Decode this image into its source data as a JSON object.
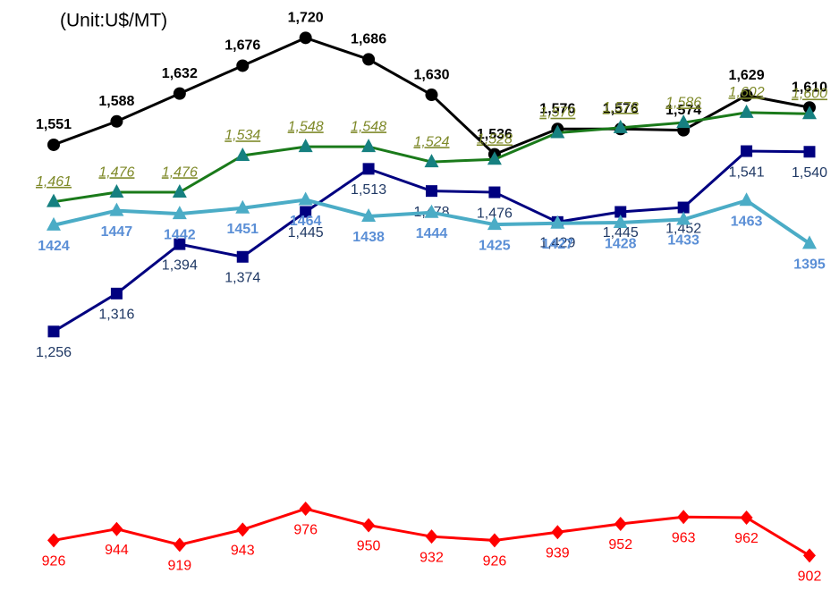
{
  "chart_data": {
    "type": "line",
    "title": "(Unit:U$/MT)",
    "categories": [
      null,
      null,
      null,
      null,
      null,
      null,
      null,
      null,
      null,
      null,
      null,
      null,
      null
    ],
    "ylim": [
      880,
      1760
    ],
    "series": [
      {
        "name": null,
        "color": "#000000",
        "label_color": "#000000",
        "marker": "circle",
        "label_style": "bold",
        "label_position": "above",
        "values": [
          1551,
          1588,
          1632,
          1676,
          1720,
          1686,
          1630,
          1536,
          1576,
          1576,
          1574,
          1629,
          1610
        ],
        "value_labels": [
          "1,551",
          "1,588",
          "1,632",
          "1,676",
          "1,720",
          "1,686",
          "1,630",
          "1,536",
          "1,576",
          "1,576",
          "1,574",
          "1,629",
          "1,610"
        ]
      },
      {
        "name": null,
        "color": "#1a7a1a",
        "marker_color": "#168080",
        "label_color": "#7f8a2a",
        "marker": "triangle",
        "label_style": "italic-underline",
        "label_position": "above",
        "values": [
          1461,
          1476,
          1476,
          1534,
          1548,
          1548,
          1524,
          1528,
          1570,
          1578,
          1586,
          1602,
          1600
        ],
        "value_labels": [
          "1,461",
          "1,476",
          "1,476",
          "1,534",
          "1,548",
          "1,548",
          "1,524",
          "1,528",
          "1,570",
          "1,578",
          "1,586",
          "1,602",
          "1,600"
        ]
      },
      {
        "name": null,
        "color": "#000080",
        "label_color": "#1f3864",
        "marker": "square",
        "label_style": "normal",
        "label_position": "below",
        "values": [
          1256,
          1316,
          1394,
          1374,
          1445,
          1513,
          1478,
          1476,
          1429,
          1445,
          1452,
          1541,
          1540
        ],
        "value_labels": [
          "1,256",
          "1,316",
          "1,394",
          "1,374",
          "1,445",
          "1,513",
          "1,478",
          "1,476",
          "1,429",
          "1,445",
          "1,452",
          "1,541",
          "1,540"
        ]
      },
      {
        "name": null,
        "color": "#4bacc6",
        "label_color": "#5b8fd6",
        "marker": "triangle",
        "label_style": "bold",
        "label_position": "below",
        "values": [
          1424,
          1447,
          1442,
          1451,
          1464,
          1438,
          1444,
          1425,
          1427,
          1428,
          1433,
          1463,
          1395
        ]
      },
      {
        "name": null,
        "color": "#ff0000",
        "label_color": "#ff0000",
        "marker": "diamond",
        "label_style": "normal",
        "label_position": "below",
        "values": [
          926,
          944,
          919,
          943,
          976,
          950,
          932,
          926,
          939,
          952,
          963,
          962,
          902
        ]
      }
    ]
  }
}
